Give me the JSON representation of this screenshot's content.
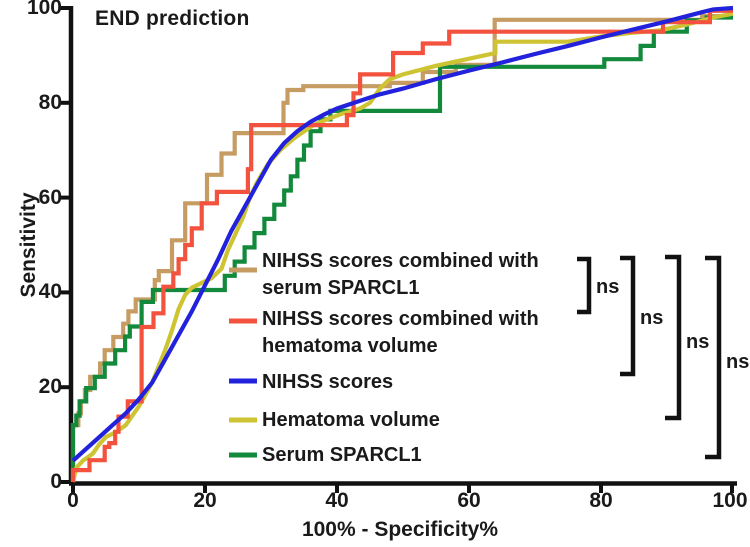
{
  "title": "END prediction",
  "axes": {
    "x": {
      "label": "100% - Specificity%",
      "ticks": [
        "0",
        "20",
        "40",
        "60",
        "80",
        "100"
      ]
    },
    "y": {
      "label": "Sensitivity",
      "ticks": [
        "0",
        "20",
        "40",
        "60",
        "80",
        "100"
      ]
    }
  },
  "legend": {
    "items": [
      {
        "id": "nihss-sparcl1",
        "line1": "NIHSS scores combined with",
        "line2": "serum SPARCL1",
        "color": "#c69c63"
      },
      {
        "id": "nihss-hematoma",
        "line1": "NIHSS scores combined with",
        "line2": "hematoma volume",
        "color": "#f3523e"
      },
      {
        "id": "nihss",
        "line1": "NIHSS scores",
        "line2": "",
        "color": "#2222dc"
      },
      {
        "id": "hematoma",
        "line1": "Hematoma volume",
        "line2": "",
        "color": "#cec433"
      },
      {
        "id": "sparcl1",
        "line1": "Serum SPARCL1",
        "line2": "",
        "color": "#12893b"
      }
    ]
  },
  "significance": {
    "labels": [
      "ns",
      "ns",
      "ns",
      "ns"
    ]
  },
  "chart_data": {
    "type": "line",
    "subtype": "roc-step-curves",
    "title": "END prediction",
    "xlabel": "100% - Specificity%",
    "ylabel": "Sensitivity",
    "xlim": [
      0,
      100
    ],
    "ylim": [
      0,
      100
    ],
    "x_ticks": [
      0,
      20,
      40,
      60,
      80,
      100
    ],
    "y_ticks": [
      0,
      20,
      40,
      60,
      80,
      100
    ],
    "grid": false,
    "legend_position": "inside-right-middle",
    "annotations": [
      {
        "label": "ns",
        "between": [
          "NIHSS scores combined with serum SPARCL1",
          "NIHSS scores combined with hematoma volume"
        ]
      },
      {
        "label": "ns",
        "between": [
          "NIHSS scores combined with serum SPARCL1",
          "NIHSS scores"
        ]
      },
      {
        "label": "ns",
        "between": [
          "NIHSS scores combined with serum SPARCL1",
          "Hematoma volume"
        ]
      },
      {
        "label": "ns",
        "between": [
          "NIHSS scores combined with serum SPARCL1",
          "Serum SPARCL1"
        ]
      }
    ],
    "series": [
      {
        "name": "NIHSS scores combined with serum SPARCL1",
        "color": "#c69c63",
        "style": "step",
        "points": [
          [
            0,
            0
          ],
          [
            0,
            12
          ],
          [
            0.8,
            12
          ],
          [
            0.8,
            14.5
          ],
          [
            1.2,
            14.5
          ],
          [
            1.2,
            17
          ],
          [
            1.8,
            17
          ],
          [
            1.8,
            19.4
          ],
          [
            2.6,
            19.4
          ],
          [
            2.6,
            22.2
          ],
          [
            4.1,
            22.2
          ],
          [
            4.1,
            25
          ],
          [
            4.8,
            25
          ],
          [
            4.8,
            27.8
          ],
          [
            6.1,
            27.8
          ],
          [
            6.1,
            30.6
          ],
          [
            7.6,
            30.6
          ],
          [
            7.6,
            33.4
          ],
          [
            8.4,
            33.4
          ],
          [
            8.4,
            36
          ],
          [
            9.5,
            36
          ],
          [
            9.5,
            38.5
          ],
          [
            12.4,
            38.5
          ],
          [
            12.4,
            42.6
          ],
          [
            13,
            42.6
          ],
          [
            13,
            44.5
          ],
          [
            15,
            44.5
          ],
          [
            15,
            51
          ],
          [
            17,
            51
          ],
          [
            17,
            58.8
          ],
          [
            20.3,
            58.8
          ],
          [
            20.3,
            64.8
          ],
          [
            22.5,
            64.8
          ],
          [
            22.5,
            69.3
          ],
          [
            24.5,
            69.3
          ],
          [
            24.5,
            73.6
          ],
          [
            31.9,
            73.6
          ],
          [
            31.9,
            80
          ],
          [
            32.5,
            80
          ],
          [
            32.5,
            82.7
          ],
          [
            34.9,
            82.7
          ],
          [
            34.9,
            83.5
          ],
          [
            48,
            83.5
          ],
          [
            48,
            84.2
          ],
          [
            53,
            84.2
          ],
          [
            53,
            86.5
          ],
          [
            58,
            86.5
          ],
          [
            58,
            88
          ],
          [
            63.9,
            88
          ],
          [
            63.9,
            97.5
          ],
          [
            95.3,
            97.5
          ],
          [
            95.3,
            98.3
          ],
          [
            100,
            98.3
          ]
        ]
      },
      {
        "name": "Serum SPARCL1",
        "color": "#12893b",
        "style": "step",
        "points": [
          [
            0,
            0
          ],
          [
            0,
            12
          ],
          [
            0.5,
            12
          ],
          [
            0.5,
            14
          ],
          [
            1,
            14
          ],
          [
            1,
            17
          ],
          [
            2,
            17
          ],
          [
            2,
            19.8
          ],
          [
            3.3,
            19.8
          ],
          [
            3.3,
            22.2
          ],
          [
            4.8,
            22.2
          ],
          [
            4.8,
            25
          ],
          [
            6.4,
            25
          ],
          [
            6.4,
            27.8
          ],
          [
            7.9,
            27.8
          ],
          [
            7.9,
            30.7
          ],
          [
            8.6,
            30.7
          ],
          [
            8.6,
            32.8
          ],
          [
            10.4,
            32.8
          ],
          [
            10.4,
            38
          ],
          [
            12.1,
            38
          ],
          [
            12.1,
            40.5
          ],
          [
            23,
            40.5
          ],
          [
            23,
            43.5
          ],
          [
            24.5,
            43.5
          ],
          [
            24.5,
            46.5
          ],
          [
            26,
            46.5
          ],
          [
            26,
            49.5
          ],
          [
            27.5,
            49.5
          ],
          [
            27.5,
            52.5
          ],
          [
            29,
            52.5
          ],
          [
            29,
            55.5
          ],
          [
            30.5,
            55.5
          ],
          [
            30.5,
            58.5
          ],
          [
            32,
            58.5
          ],
          [
            32,
            61.5
          ],
          [
            33,
            61.5
          ],
          [
            33,
            64.5
          ],
          [
            34,
            64.5
          ],
          [
            34,
            68
          ],
          [
            35,
            68
          ],
          [
            35,
            71
          ],
          [
            36,
            71
          ],
          [
            36,
            74
          ],
          [
            37.5,
            74
          ],
          [
            37.5,
            76.5
          ],
          [
            39,
            76.5
          ],
          [
            39,
            78.3
          ],
          [
            55.6,
            78.3
          ],
          [
            55.6,
            87.6
          ],
          [
            80.5,
            87.6
          ],
          [
            80.5,
            89.2
          ],
          [
            86,
            89.2
          ],
          [
            86,
            92
          ],
          [
            88,
            92
          ],
          [
            88,
            95
          ],
          [
            93,
            95
          ],
          [
            93,
            97.4
          ],
          [
            96,
            97.4
          ],
          [
            96,
            98
          ],
          [
            100,
            98
          ]
        ]
      },
      {
        "name": "Hematoma volume",
        "color": "#cec433",
        "style": "line",
        "points": [
          [
            0,
            0
          ],
          [
            0.5,
            3
          ],
          [
            1.5,
            4.5
          ],
          [
            3,
            6
          ],
          [
            4,
            8
          ],
          [
            5,
            9.5
          ],
          [
            6.5,
            10.5
          ],
          [
            8,
            12
          ],
          [
            9,
            14
          ],
          [
            10,
            16
          ],
          [
            11,
            18.5
          ],
          [
            12,
            21
          ],
          [
            13,
            24.5
          ],
          [
            14,
            28
          ],
          [
            15,
            32
          ],
          [
            16,
            36.5
          ],
          [
            17,
            39.5
          ],
          [
            18,
            41
          ],
          [
            19.5,
            42
          ],
          [
            21,
            43
          ],
          [
            22.5,
            45
          ],
          [
            23.5,
            49
          ],
          [
            24.5,
            52
          ],
          [
            25.8,
            56
          ],
          [
            26.8,
            60
          ],
          [
            27.8,
            63
          ],
          [
            29.5,
            67
          ],
          [
            31.4,
            70
          ],
          [
            33.5,
            72.5
          ],
          [
            36.4,
            75.3
          ],
          [
            39,
            76.8
          ],
          [
            41,
            77.8
          ],
          [
            43.5,
            78.8
          ],
          [
            45,
            80
          ],
          [
            46.5,
            83
          ],
          [
            48,
            85
          ],
          [
            50,
            86
          ],
          [
            55,
            87.8
          ],
          [
            60,
            89.3
          ],
          [
            64,
            90.5
          ],
          [
            64,
            92.9
          ],
          [
            75,
            92.9
          ],
          [
            80,
            94
          ],
          [
            85,
            94.8
          ],
          [
            89,
            95.3
          ],
          [
            93,
            96.5
          ],
          [
            97,
            98
          ],
          [
            100,
            98.8
          ]
        ]
      },
      {
        "name": "NIHSS scores combined with hematoma volume",
        "color": "#f3523e",
        "style": "step",
        "points": [
          [
            0,
            0
          ],
          [
            0,
            2.5
          ],
          [
            2.5,
            2.5
          ],
          [
            2.5,
            4.6
          ],
          [
            4.8,
            4.6
          ],
          [
            4.8,
            7.4
          ],
          [
            5.5,
            7.4
          ],
          [
            5.5,
            8.2
          ],
          [
            6.4,
            8.2
          ],
          [
            6.4,
            10.6
          ],
          [
            6.9,
            10.6
          ],
          [
            6.9,
            13.8
          ],
          [
            8.3,
            13.8
          ],
          [
            8.3,
            17
          ],
          [
            10.4,
            17
          ],
          [
            10.4,
            32.7
          ],
          [
            12.2,
            32.7
          ],
          [
            12.2,
            35.6
          ],
          [
            13.7,
            35.6
          ],
          [
            13.7,
            41.2
          ],
          [
            15.2,
            41.2
          ],
          [
            15.2,
            44
          ],
          [
            16,
            44
          ],
          [
            16,
            47
          ],
          [
            17,
            47
          ],
          [
            17,
            50
          ],
          [
            18,
            50
          ],
          [
            18,
            53.5
          ],
          [
            19.5,
            53.5
          ],
          [
            19.5,
            58.8
          ],
          [
            21.8,
            58.8
          ],
          [
            21.8,
            61.2
          ],
          [
            26.5,
            61.2
          ],
          [
            26.5,
            66
          ],
          [
            27,
            66
          ],
          [
            27,
            75.3
          ],
          [
            41.5,
            75.3
          ],
          [
            41.5,
            77.4
          ],
          [
            42.5,
            77.4
          ],
          [
            42.5,
            82
          ],
          [
            43.5,
            82
          ],
          [
            43.5,
            86
          ],
          [
            48.5,
            86
          ],
          [
            48.5,
            90.5
          ],
          [
            53,
            90.5
          ],
          [
            53,
            92.5
          ],
          [
            57,
            92.5
          ],
          [
            57,
            95
          ],
          [
            89.4,
            95
          ],
          [
            89.4,
            97
          ],
          [
            96.5,
            97
          ],
          [
            96.5,
            99.4
          ],
          [
            100,
            99.4
          ]
        ]
      },
      {
        "name": "NIHSS scores",
        "color": "#2222dc",
        "style": "line",
        "points": [
          [
            0,
            4.5
          ],
          [
            2,
            7
          ],
          [
            4,
            9.5
          ],
          [
            6,
            12
          ],
          [
            8,
            14.5
          ],
          [
            10,
            17.5
          ],
          [
            12,
            21
          ],
          [
            14,
            26
          ],
          [
            16,
            31
          ],
          [
            18,
            36
          ],
          [
            20,
            41.5
          ],
          [
            22,
            47
          ],
          [
            24,
            53
          ],
          [
            26,
            58
          ],
          [
            28,
            63
          ],
          [
            30,
            68
          ],
          [
            32,
            71.5
          ],
          [
            34,
            74
          ],
          [
            36,
            76
          ],
          [
            38,
            77.5
          ],
          [
            40,
            78.8
          ],
          [
            43,
            80.2
          ],
          [
            46.5,
            81.8
          ],
          [
            50,
            83
          ],
          [
            55,
            85
          ],
          [
            60,
            86.8
          ],
          [
            65,
            88.5
          ],
          [
            70,
            90.3
          ],
          [
            75,
            92
          ],
          [
            80,
            93.8
          ],
          [
            85,
            95.5
          ],
          [
            90,
            97.2
          ],
          [
            95,
            99
          ],
          [
            97,
            99.7
          ],
          [
            100,
            100
          ]
        ]
      }
    ]
  }
}
